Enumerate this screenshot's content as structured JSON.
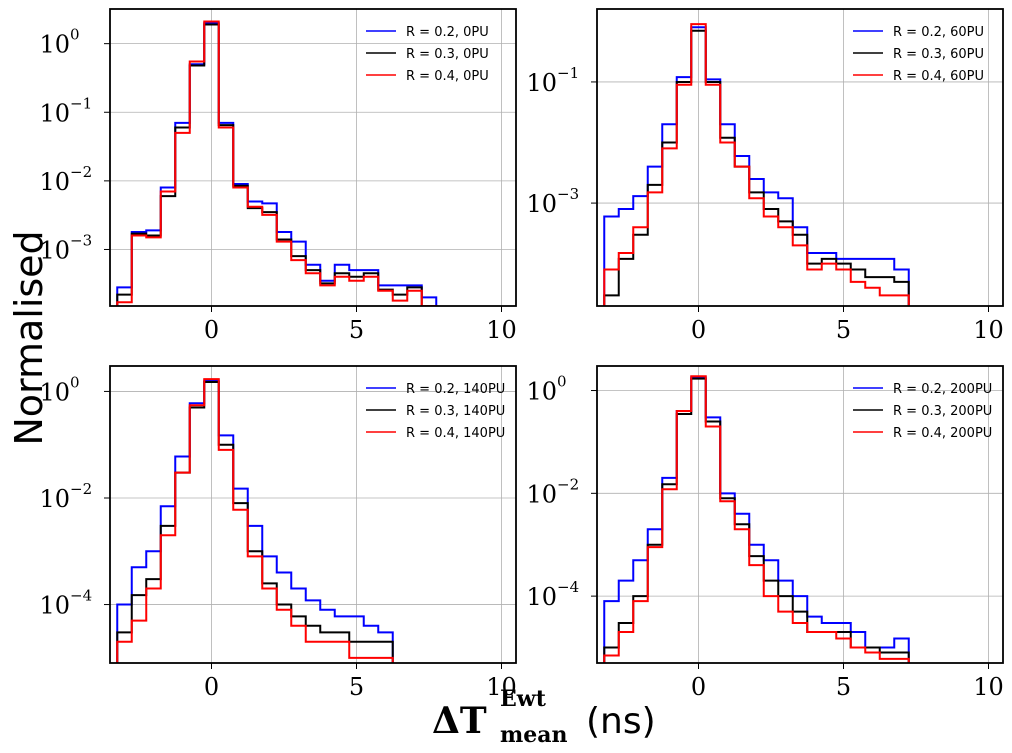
{
  "figure": {
    "ylabel": "Normalised",
    "xlabel_symbol": "ΔT",
    "xlabel_sup": "Ewt",
    "xlabel_sub": "mean",
    "xlabel_unit": "(ns)"
  },
  "colors": {
    "r02": "#0000ff",
    "r03": "#000000",
    "r04": "#ff0000",
    "grid": "#b0b0b0"
  },
  "chart_data": [
    {
      "type": "line",
      "drawstyle": "steps",
      "xlim": [
        -3.5,
        10.5
      ],
      "ylim": [
        0.00015,
        3.2
      ],
      "yscale": "log",
      "xticks": [
        0,
        5,
        10
      ],
      "yticks": [
        1,
        0.1,
        0.01,
        0.001
      ],
      "ytick_exps": [
        "0",
        "−1",
        "−2",
        "−3"
      ],
      "grid": true,
      "legend": "top-right",
      "x": [
        -3,
        -2.5,
        -2,
        -1.5,
        -1,
        -0.5,
        0,
        0.5,
        1,
        1.5,
        2,
        2.5,
        3,
        3.5,
        4,
        4.5,
        5,
        5.5,
        6,
        6.5,
        7,
        7.5
      ],
      "series": [
        {
          "name": "R = 0.2, 0PU",
          "color": "#0000ff",
          "values": [
            0.00028,
            0.0018,
            0.0019,
            0.008,
            0.07,
            0.5,
            2.0,
            0.07,
            0.009,
            0.005,
            0.0047,
            0.0018,
            0.0013,
            0.0006,
            0.00035,
            0.0006,
            0.0005,
            0.0005,
            0.0003,
            0.0003,
            0.0003,
            0.0002
          ]
        },
        {
          "name": "R = 0.3, 0PU",
          "color": "#000000",
          "values": [
            0.00022,
            0.0017,
            0.0016,
            0.006,
            0.06,
            0.48,
            1.9,
            0.065,
            0.0085,
            0.004,
            0.0035,
            0.0014,
            0.0008,
            0.0005,
            0.00032,
            0.00045,
            0.0004,
            0.00045,
            0.00026,
            0.00022,
            0.00028,
            0.00015
          ]
        },
        {
          "name": "R = 0.4, 0PU",
          "color": "#ff0000",
          "values": [
            0.00017,
            0.0016,
            0.0015,
            0.007,
            0.05,
            0.55,
            2.1,
            0.06,
            0.008,
            0.0042,
            0.0032,
            0.0013,
            0.0007,
            0.00045,
            0.0003,
            0.0004,
            0.00035,
            0.0004,
            0.00025,
            0.00018,
            0.00025,
            0.00015
          ]
        }
      ]
    },
    {
      "type": "line",
      "drawstyle": "steps",
      "xlim": [
        -3.5,
        10.5
      ],
      "ylim": [
        2e-05,
        1.6
      ],
      "yscale": "log",
      "xticks": [
        0,
        5,
        10
      ],
      "yticks": [
        0.1,
        0.001
      ],
      "ytick_exps": [
        "−1",
        "−3"
      ],
      "grid": true,
      "legend": "top-right",
      "x": [
        -3,
        -2.5,
        -2,
        -1.5,
        -1,
        -0.5,
        0,
        0.5,
        1,
        1.5,
        2,
        2.5,
        3,
        3.5,
        4,
        4.5,
        5,
        5.5,
        6,
        6.5,
        7
      ],
      "series": [
        {
          "name": "R = 0.2, 60PU",
          "color": "#0000ff",
          "values": [
            0.0006,
            0.0008,
            0.0013,
            0.004,
            0.02,
            0.12,
            0.8,
            0.11,
            0.02,
            0.006,
            0.0025,
            0.0015,
            0.0012,
            0.0004,
            0.00015,
            0.00015,
            0.00012,
            0.00012,
            0.00012,
            0.00012,
            8e-05
          ]
        },
        {
          "name": "R = 0.3, 60PU",
          "color": "#000000",
          "values": [
            3e-05,
            0.00012,
            0.0003,
            0.002,
            0.01,
            0.1,
            0.7,
            0.1,
            0.012,
            0.004,
            0.0015,
            0.0008,
            0.0005,
            0.0003,
            0.0001,
            0.00012,
            0.0001,
            8e-05,
            6e-05,
            6e-05,
            5e-05
          ]
        },
        {
          "name": "R = 0.4, 60PU",
          "color": "#ff0000",
          "values": [
            8e-05,
            0.00015,
            0.0004,
            0.0015,
            0.008,
            0.09,
            0.9,
            0.09,
            0.01,
            0.004,
            0.0012,
            0.0006,
            0.0004,
            0.0002,
            8e-05,
            0.0001,
            8e-05,
            5e-05,
            4e-05,
            3e-05,
            3e-05
          ]
        }
      ]
    },
    {
      "type": "line",
      "drawstyle": "steps",
      "xlim": [
        -3.5,
        10.5
      ],
      "ylim": [
        8e-06,
        3.0
      ],
      "yscale": "log",
      "xticks": [
        0,
        5,
        10
      ],
      "yticks": [
        1,
        0.01,
        0.0001
      ],
      "ytick_exps": [
        "0",
        "−2",
        "−4"
      ],
      "grid": true,
      "legend": "top-right",
      "x": [
        -3,
        -2.5,
        -2,
        -1.5,
        -1,
        -0.5,
        0,
        0.5,
        1,
        1.5,
        2,
        2.5,
        3,
        3.5,
        4,
        4.5,
        5,
        5.5,
        6
      ],
      "series": [
        {
          "name": "R = 0.2, 140PU",
          "color": "#0000ff",
          "values": [
            0.0001,
            0.0005,
            0.001,
            0.007,
            0.06,
            0.6,
            1.6,
            0.15,
            0.015,
            0.003,
            0.0008,
            0.0004,
            0.0002,
            0.00012,
            8e-05,
            6e-05,
            6e-05,
            4e-05,
            3e-05
          ]
        },
        {
          "name": "R = 0.3, 140PU",
          "color": "#000000",
          "values": [
            3e-05,
            0.00015,
            0.0003,
            0.003,
            0.03,
            0.5,
            1.5,
            0.1,
            0.008,
            0.001,
            0.00025,
            0.0001,
            6e-05,
            4e-05,
            3e-05,
            3e-05,
            2e-05,
            2e-05,
            2e-05
          ]
        },
        {
          "name": "R = 0.4, 140PU",
          "color": "#ff0000",
          "values": [
            2e-05,
            5e-05,
            0.0002,
            0.002,
            0.03,
            0.55,
            1.7,
            0.08,
            0.006,
            0.0008,
            0.0002,
            8e-05,
            4e-05,
            2e-05,
            2e-05,
            2e-05,
            1e-05,
            1e-05,
            1e-05
          ]
        }
      ]
    },
    {
      "type": "line",
      "drawstyle": "steps",
      "xlim": [
        -3.5,
        10.5
      ],
      "ylim": [
        5e-06,
        3.0
      ],
      "yscale": "log",
      "xticks": [
        0,
        5,
        10
      ],
      "yticks": [
        1,
        0.01,
        0.0001
      ],
      "ytick_exps": [
        "0",
        "−2",
        "−4"
      ],
      "grid": true,
      "legend": "top-right",
      "x": [
        -3,
        -2.5,
        -2,
        -1.5,
        -1,
        -0.5,
        0,
        0.5,
        1,
        1.5,
        2,
        2.5,
        3,
        3.5,
        4,
        4.5,
        5,
        5.5,
        6,
        6.5,
        7
      ],
      "series": [
        {
          "name": "R = 0.2, 200PU",
          "color": "#0000ff",
          "values": [
            8e-05,
            0.0002,
            0.0005,
            0.002,
            0.02,
            0.4,
            1.8,
            0.3,
            0.01,
            0.004,
            0.001,
            0.0005,
            0.0002,
            0.0001,
            4e-05,
            3e-05,
            3e-05,
            2e-05,
            1e-05,
            1e-05,
            1.5e-05
          ]
        },
        {
          "name": "R = 0.3, 200PU",
          "color": "#000000",
          "values": [
            1e-05,
            3e-05,
            0.0001,
            0.001,
            0.015,
            0.35,
            1.7,
            0.25,
            0.008,
            0.0025,
            0.0006,
            0.0002,
            0.0001,
            5e-05,
            2e-05,
            2e-05,
            2e-05,
            1e-05,
            1e-05,
            8e-06,
            8e-06
          ]
        },
        {
          "name": "R = 0.4, 200PU",
          "color": "#ff0000",
          "values": [
            7e-06,
            2e-05,
            8e-05,
            0.0009,
            0.012,
            0.4,
            1.9,
            0.2,
            0.007,
            0.002,
            0.0004,
            0.0001,
            5e-05,
            3e-05,
            2e-05,
            2e-05,
            1.5e-05,
            1e-05,
            8e-06,
            6e-06,
            6e-06
          ]
        }
      ]
    }
  ]
}
